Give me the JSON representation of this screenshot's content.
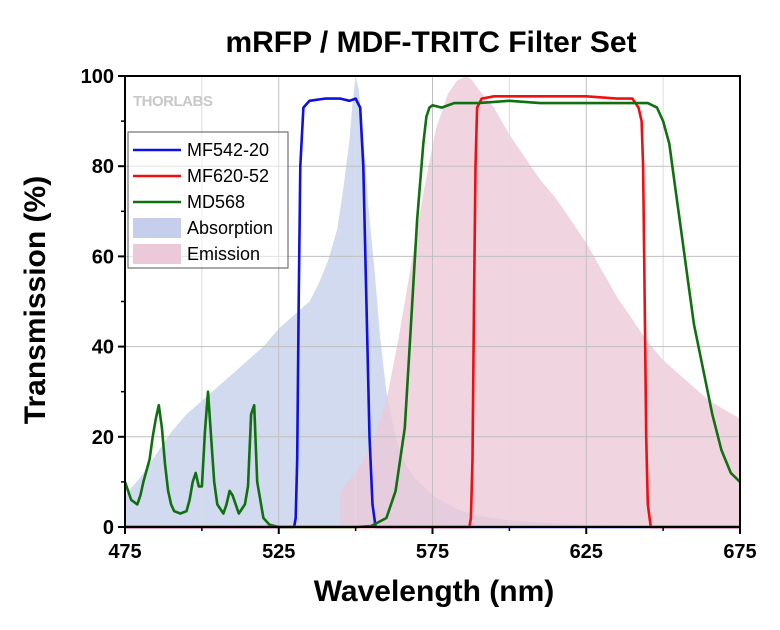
{
  "chart_data": {
    "type": "line",
    "title": "mRFP / MDF-TRITC Filter Set",
    "xlabel": "Wavelength (nm)",
    "ylabel": "Transmission (%)",
    "xlim": [
      475,
      675
    ],
    "ylim": [
      0,
      100
    ],
    "xticks": [
      475,
      525,
      575,
      625,
      675
    ],
    "yticks": [
      0,
      20,
      40,
      60,
      80,
      100
    ],
    "grid": true,
    "legend_position": "upper-left",
    "logo": "THORLABS",
    "series": [
      {
        "name": "MF542-20",
        "kind": "line",
        "color": "#1010e0",
        "x": [
          475,
          530,
          530.5,
          531,
          531.5,
          532,
          533,
          535,
          540,
          545,
          548,
          550,
          551.5,
          552.5,
          553.5,
          554.5,
          555.5,
          556.5,
          675
        ],
        "y": [
          0,
          0,
          2,
          15,
          50,
          80,
          93,
          94.5,
          95,
          95,
          94.5,
          95,
          93,
          80,
          50,
          20,
          5,
          0,
          0
        ]
      },
      {
        "name": "MF620-52",
        "kind": "line",
        "color": "#ee1010",
        "x": [
          475,
          587,
          587.5,
          588,
          588.5,
          589,
          589.5,
          591,
          595,
          605,
          615,
          625,
          635,
          640,
          642,
          643,
          643.5,
          644,
          644.5,
          645,
          646,
          675
        ],
        "y": [
          0,
          0,
          2,
          15,
          50,
          80,
          93,
          95,
          95.5,
          95.5,
          95.5,
          95.5,
          95,
          95,
          93,
          90,
          80,
          50,
          20,
          5,
          0,
          0
        ]
      },
      {
        "name": "MD568",
        "kind": "line",
        "color": "#107010",
        "x": [
          475,
          477,
          479,
          480,
          481,
          483,
          484,
          485,
          486,
          487,
          488,
          489,
          490,
          491,
          493,
          495,
          496,
          497,
          498,
          499,
          500,
          501,
          502,
          504,
          505,
          507,
          508,
          509,
          510,
          512,
          514,
          515,
          516,
          517,
          518,
          520,
          522,
          525,
          530,
          535,
          540,
          545,
          550,
          555,
          560,
          563,
          566,
          568,
          570,
          572,
          573,
          574,
          575,
          578,
          582,
          590,
          600,
          610,
          620,
          630,
          640,
          645,
          648,
          650,
          652,
          654,
          656,
          658,
          660,
          663,
          666,
          669,
          672,
          675
        ],
        "y": [
          10,
          6,
          5,
          7,
          10,
          15,
          20,
          24,
          27,
          22,
          14,
          8,
          5,
          3.5,
          3,
          3.5,
          6,
          10,
          12,
          9,
          9,
          21,
          30,
          10,
          5,
          3,
          5,
          8,
          7,
          3,
          5,
          9,
          25,
          27,
          10,
          2,
          0.5,
          0,
          0,
          0,
          0,
          0,
          0,
          0.2,
          2,
          8,
          22,
          45,
          68,
          85,
          91,
          93,
          93.5,
          93,
          94,
          94,
          94.5,
          94,
          94,
          94,
          94,
          94,
          93,
          90,
          85,
          75,
          65,
          55,
          45,
          35,
          25,
          17,
          12,
          10
        ]
      },
      {
        "name": "Absorption",
        "kind": "area",
        "color": "#c5cfeb",
        "x": [
          475,
          480,
          485,
          490,
          495,
          500,
          505,
          510,
          515,
          520,
          525,
          530,
          535,
          538,
          541,
          544,
          546,
          548,
          549,
          550,
          551,
          552,
          553,
          554,
          556,
          558,
          560,
          563,
          566,
          569,
          572,
          575,
          580,
          585,
          590,
          600,
          610,
          620,
          630,
          640,
          650,
          660,
          675
        ],
        "y": [
          7,
          11,
          16,
          21,
          25,
          28,
          31,
          34,
          37,
          40,
          44,
          47,
          50,
          54,
          59,
          66,
          75,
          86,
          94,
          100,
          97,
          90,
          82,
          72,
          58,
          42,
          30,
          20,
          14,
          11,
          9,
          7,
          5,
          3.5,
          2.5,
          1.5,
          1,
          0.6,
          0.4,
          0.2,
          0.1,
          0,
          0
        ]
      },
      {
        "name": "Emission",
        "kind": "area",
        "color": "#ecc9d9",
        "x": [
          545,
          550,
          555,
          560,
          564,
          568,
          572,
          576,
          580,
          583,
          586,
          588,
          590,
          595,
          600,
          605,
          610,
          615,
          620,
          625,
          630,
          635,
          640,
          645,
          650,
          655,
          660,
          665,
          670,
          675
        ],
        "y": [
          8,
          12,
          18,
          28,
          42,
          58,
          74,
          88,
          96,
          99,
          100,
          99,
          97,
          93,
          87,
          82,
          77,
          73,
          68,
          63,
          57,
          51,
          46,
          41,
          37,
          34,
          31,
          28,
          26,
          24
        ]
      }
    ]
  }
}
